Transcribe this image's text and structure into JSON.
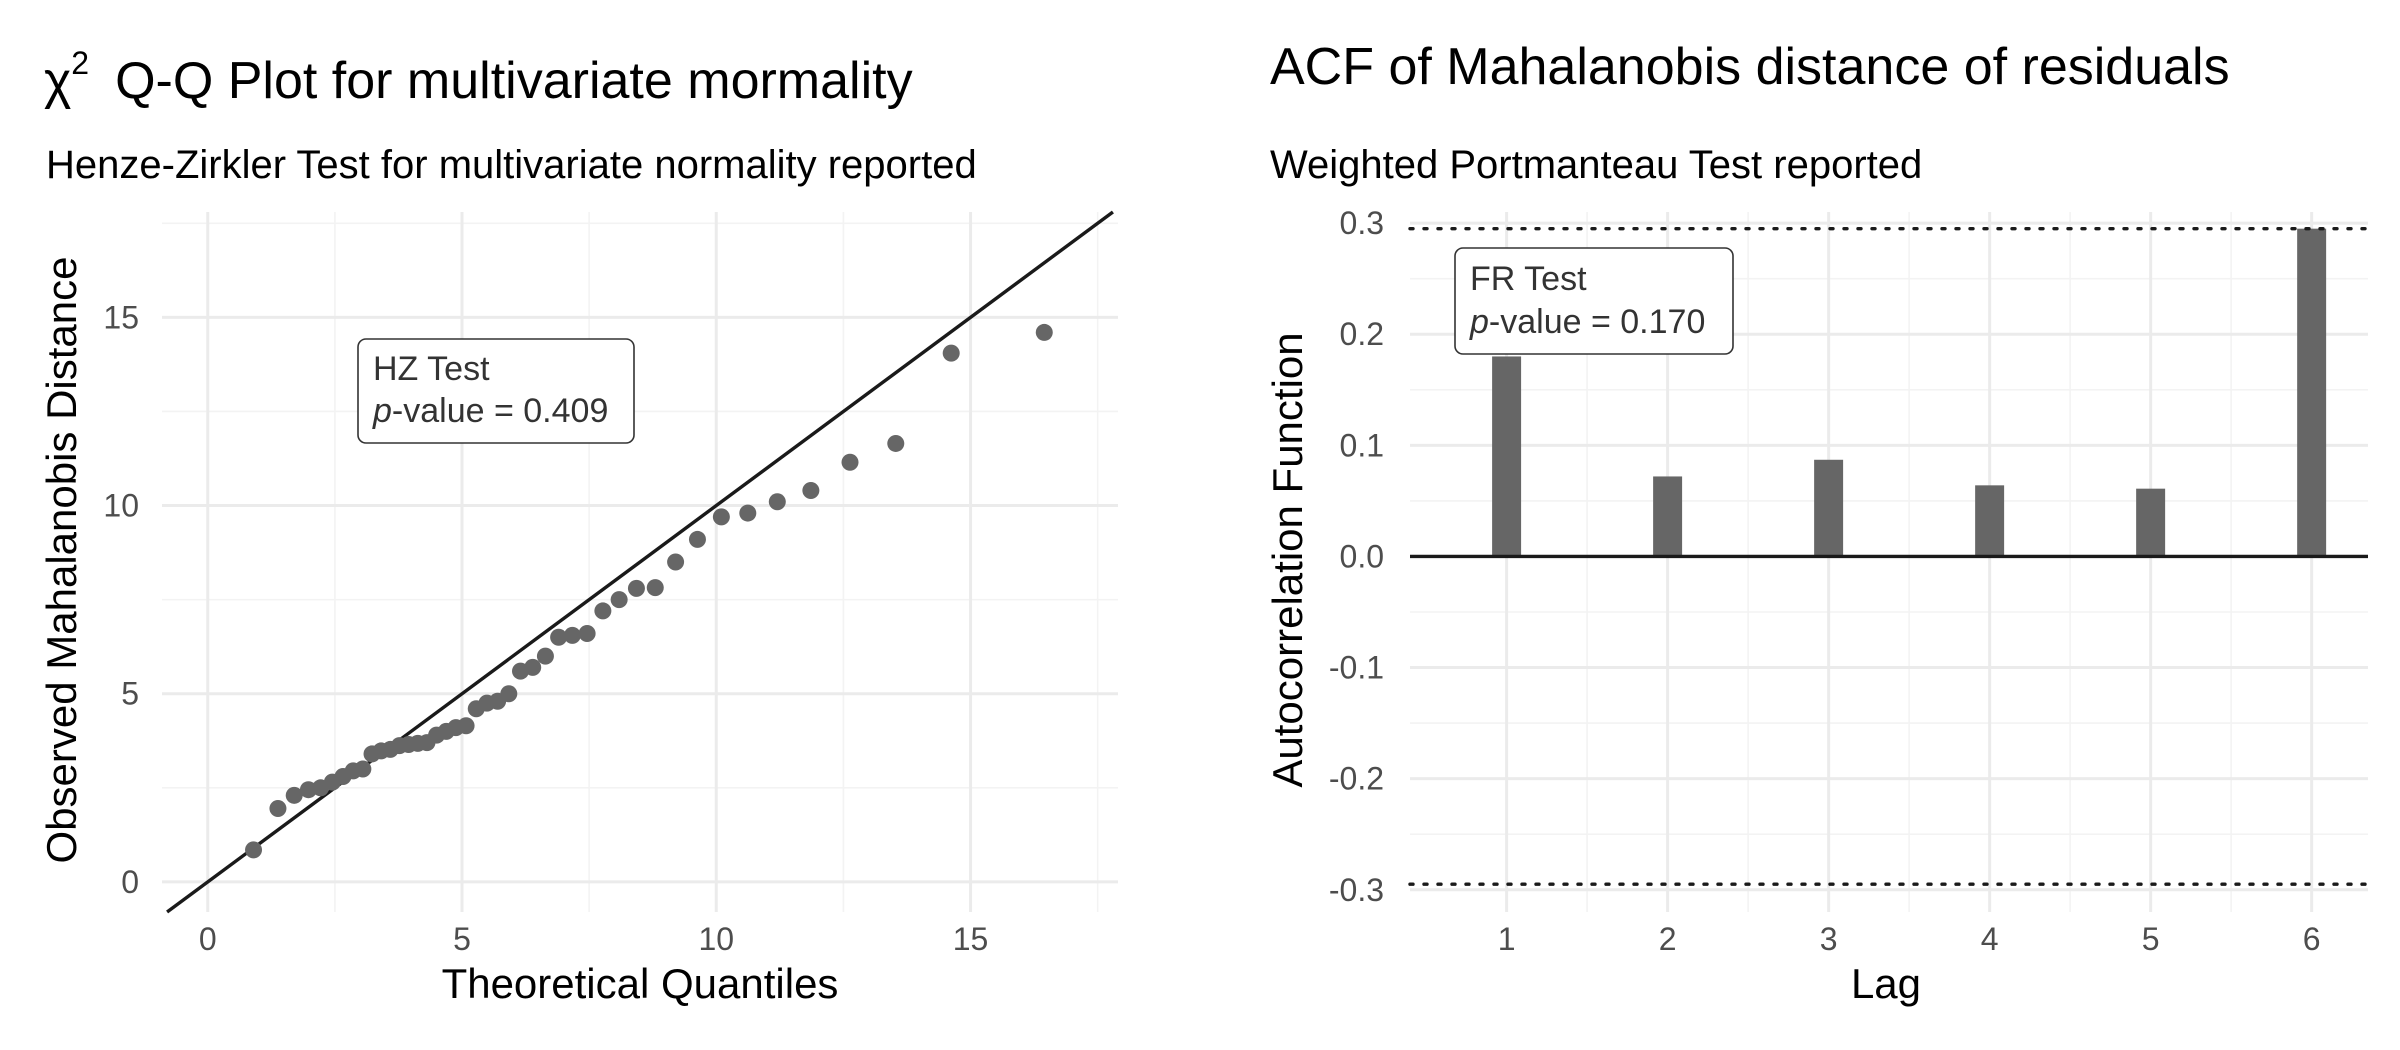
{
  "chart_data": [
    {
      "type": "scatter",
      "title_symbol": "χ",
      "title_superscript": "2",
      "title": "Q-Q Plot for multivariate mormality",
      "subtitle": "Henze-Zirkler Test for multivariate normality reported",
      "xlabel": "Theoretical Quantiles",
      "ylabel": "Observed Mahalanobis Distance",
      "xlim": [
        -0.9,
        17.9
      ],
      "ylim": [
        -0.8,
        17.8
      ],
      "xticks": [
        0,
        5,
        10,
        15
      ],
      "yticks": [
        0,
        5,
        10,
        15
      ],
      "grid": true,
      "point_color": "#666666",
      "reference_line": {
        "intercept": 0,
        "slope": 1,
        "color": "#1a1a1a"
      },
      "annotation": {
        "line1": "HZ Test",
        "p_italic": "p",
        "p_rest": "-value = 0.409",
        "x": 3.3,
        "y": 13.8
      },
      "points": [
        {
          "x": 0.9,
          "y": 0.85
        },
        {
          "x": 1.38,
          "y": 1.95
        },
        {
          "x": 1.7,
          "y": 2.3
        },
        {
          "x": 1.98,
          "y": 2.45
        },
        {
          "x": 2.22,
          "y": 2.5
        },
        {
          "x": 2.45,
          "y": 2.65
        },
        {
          "x": 2.66,
          "y": 2.8
        },
        {
          "x": 2.86,
          "y": 2.95
        },
        {
          "x": 3.05,
          "y": 3.0
        },
        {
          "x": 3.23,
          "y": 3.4
        },
        {
          "x": 3.41,
          "y": 3.48
        },
        {
          "x": 3.59,
          "y": 3.52
        },
        {
          "x": 3.77,
          "y": 3.62
        },
        {
          "x": 3.95,
          "y": 3.65
        },
        {
          "x": 4.13,
          "y": 3.68
        },
        {
          "x": 4.31,
          "y": 3.7
        },
        {
          "x": 4.5,
          "y": 3.9
        },
        {
          "x": 4.69,
          "y": 4.0
        },
        {
          "x": 4.88,
          "y": 4.1
        },
        {
          "x": 5.08,
          "y": 4.15
        },
        {
          "x": 5.28,
          "y": 4.6
        },
        {
          "x": 5.49,
          "y": 4.75
        },
        {
          "x": 5.7,
          "y": 4.8
        },
        {
          "x": 5.92,
          "y": 5.0
        },
        {
          "x": 6.15,
          "y": 5.6
        },
        {
          "x": 6.39,
          "y": 5.7
        },
        {
          "x": 6.64,
          "y": 6.0
        },
        {
          "x": 6.9,
          "y": 6.5
        },
        {
          "x": 7.17,
          "y": 6.55
        },
        {
          "x": 7.46,
          "y": 6.6
        },
        {
          "x": 7.77,
          "y": 7.2
        },
        {
          "x": 8.09,
          "y": 7.5
        },
        {
          "x": 8.43,
          "y": 7.8
        },
        {
          "x": 8.8,
          "y": 7.82
        },
        {
          "x": 9.2,
          "y": 8.5
        },
        {
          "x": 9.63,
          "y": 9.1
        },
        {
          "x": 10.1,
          "y": 9.7
        },
        {
          "x": 10.62,
          "y": 9.8
        },
        {
          "x": 11.2,
          "y": 10.1
        },
        {
          "x": 11.86,
          "y": 10.4
        },
        {
          "x": 12.63,
          "y": 11.15
        },
        {
          "x": 13.53,
          "y": 11.65
        },
        {
          "x": 14.62,
          "y": 14.05
        },
        {
          "x": 16.45,
          "y": 14.6
        }
      ]
    },
    {
      "type": "bar",
      "title": "ACF of Mahalanobis distance of residuals",
      "subtitle": "Weighted Portmanteau Test reported",
      "xlabel": "Lag",
      "ylabel": "Autocorrelation Function",
      "categories": [
        1,
        2,
        3,
        4,
        5,
        6
      ],
      "values": [
        0.18,
        0.072,
        0.087,
        0.064,
        0.061,
        0.295
      ],
      "xlim": [
        0.4,
        6.35
      ],
      "ylim": [
        -0.32,
        0.31
      ],
      "yticks": [
        -0.3,
        -0.2,
        -0.1,
        0.0,
        0.1,
        0.2,
        0.3
      ],
      "ytick_labels": [
        "-0.3",
        "-0.2",
        "-0.1",
        "0.0",
        "0.1",
        "0.2",
        "0.3"
      ],
      "xtick_labels": [
        "1",
        "2",
        "3",
        "4",
        "5",
        "6"
      ],
      "confidence_bounds": [
        0.295,
        -0.295
      ],
      "grid": true,
      "bar_color": "#666666",
      "annotation": {
        "line1": "FR Test",
        "p_italic": "p",
        "p_rest": "-value = 0.170",
        "x": 0.96,
        "y": 0.27
      }
    }
  ]
}
